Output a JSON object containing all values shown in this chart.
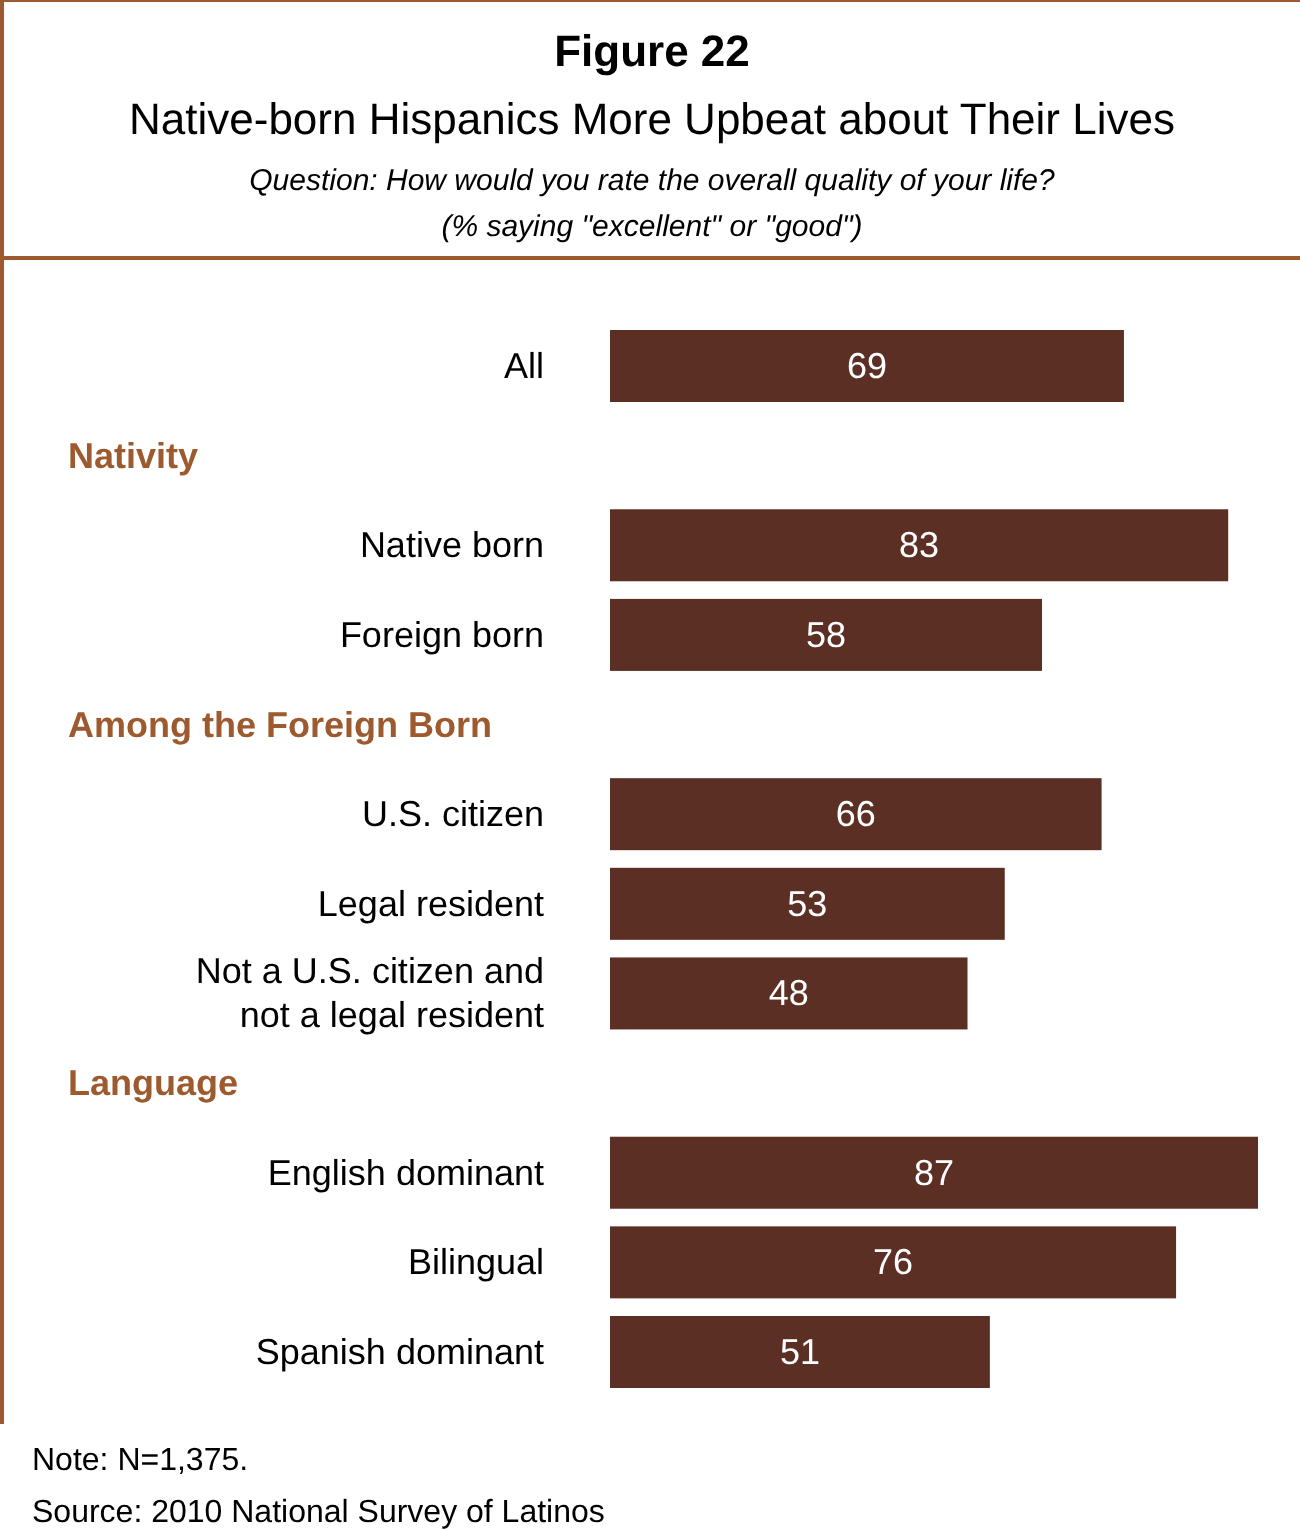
{
  "chart_data": {
    "type": "bar",
    "orientation": "horizontal",
    "title": "Figure 22",
    "subtitle": "Native-born Hispanics More Upbeat about Their Lives",
    "categories": [
      "All",
      null,
      "Native born",
      "Foreign born",
      null,
      "U.S. citizen",
      "Legal resident",
      "Not a U.S. citizen and not a legal resident",
      null,
      "English dominant",
      "Bilingual",
      "Spanish dominant"
    ],
    "values": [
      69,
      null,
      83,
      58,
      null,
      66,
      53,
      48,
      null,
      87,
      76,
      51
    ],
    "color": "#5c2f24",
    "data_labels": true,
    "annotations": [
      "Question: How would you rate the overall quality of your life?",
      "(% saying \"excellent\" or \"good\")",
      "Nativity",
      "Among the Foreign Born",
      "Language",
      "Note: N=1,375.",
      "Source: 2010 National Survey of Latinos"
    ]
  }
}
